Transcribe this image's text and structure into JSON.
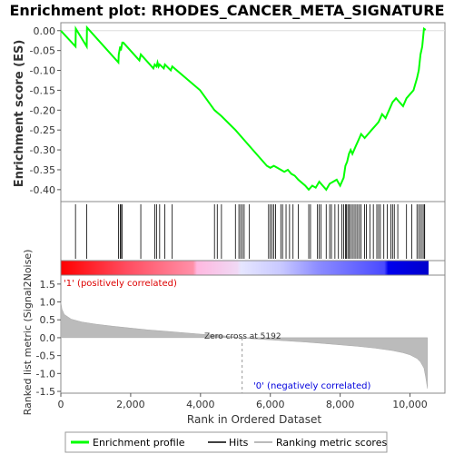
{
  "chart_data": {
    "type": "line",
    "title": "Enrichment plot: RHODES_CANCER_META_SIGNATURE",
    "panels": {
      "es": {
        "ylabel": "Enrichment score (ES)",
        "ylim": [
          -0.43,
          0.02
        ],
        "yticks": [
          0.0,
          -0.05,
          -0.1,
          -0.15,
          -0.2,
          -0.25,
          -0.3,
          -0.35,
          -0.4
        ],
        "ytick_labels": [
          "0.00",
          "-0.05",
          "-0.10",
          "-0.15",
          "-0.20",
          "-0.25",
          "-0.30",
          "-0.35",
          "-0.40"
        ],
        "series": [
          {
            "name": "Enrichment profile",
            "color": "#00ff00",
            "x": [
              0,
              420,
              430,
              740,
              750,
              1650,
              1660,
              1700,
              1720,
              1760,
              1790,
              2250,
              2290,
              2650,
              2690,
              2740,
              2770,
              2800,
              2830,
              2950,
              2980,
              3150,
              3190,
              3990,
              4400,
              4600,
              5000,
              5500,
              5900,
              6000,
              6100,
              6200,
              6300,
              6400,
              6500,
              6600,
              6700,
              6800,
              7000,
              7100,
              7200,
              7300,
              7400,
              7500,
              7600,
              7700,
              7800,
              7900,
              8000,
              8100,
              8150,
              8200,
              8250,
              8300,
              8350,
              8400,
              8450,
              8500,
              8550,
              8600,
              8700,
              8800,
              8900,
              9000,
              9100,
              9150,
              9200,
              9300,
              9400,
              9500,
              9600,
              9700,
              9800,
              9900,
              10000,
              10100,
              10200,
              10250,
              10300,
              10350,
              10400,
              10450
            ],
            "y": [
              0.0,
              -0.04,
              0.005,
              -0.04,
              0.008,
              -0.08,
              -0.06,
              -0.04,
              -0.05,
              -0.03,
              -0.03,
              -0.075,
              -0.06,
              -0.095,
              -0.085,
              -0.09,
              -0.08,
              -0.09,
              -0.085,
              -0.095,
              -0.085,
              -0.1,
              -0.09,
              -0.15,
              -0.2,
              -0.215,
              -0.25,
              -0.3,
              -0.34,
              -0.345,
              -0.34,
              -0.345,
              -0.35,
              -0.355,
              -0.35,
              -0.36,
              -0.365,
              -0.375,
              -0.39,
              -0.4,
              -0.39,
              -0.395,
              -0.38,
              -0.39,
              -0.4,
              -0.385,
              -0.38,
              -0.375,
              -0.39,
              -0.37,
              -0.34,
              -0.33,
              -0.31,
              -0.3,
              -0.31,
              -0.3,
              -0.29,
              -0.28,
              -0.27,
              -0.26,
              -0.27,
              -0.26,
              -0.25,
              -0.24,
              -0.23,
              -0.22,
              -0.21,
              -0.22,
              -0.2,
              -0.18,
              -0.17,
              -0.18,
              -0.19,
              -0.17,
              -0.16,
              -0.15,
              -0.12,
              -0.1,
              -0.06,
              -0.04,
              0.005,
              0.002
            ]
          }
        ]
      },
      "hits": {
        "positions": [
          420,
          740,
          1650,
          1700,
          1720,
          1760,
          2290,
          2690,
          2740,
          2830,
          2980,
          3190,
          4400,
          4480,
          4600,
          5000,
          5100,
          5150,
          5200,
          5250,
          5400,
          5950,
          6000,
          6050,
          6100,
          6150,
          6300,
          6350,
          6450,
          6550,
          6650,
          6800,
          7100,
          7150,
          7350,
          7400,
          7450,
          7600,
          7700,
          7750,
          7850,
          7950,
          8050,
          8100,
          8150,
          8180,
          8220,
          8260,
          8300,
          8350,
          8400,
          8450,
          8500,
          8550,
          8600,
          8700,
          8750,
          8850,
          8950,
          9050,
          9100,
          9150,
          9250,
          9350,
          9450,
          9500,
          9550,
          9650,
          9900,
          10050,
          10200,
          10250,
          10300,
          10350,
          10400,
          10420
        ]
      },
      "rank_bar": {
        "positive_label": "'1' (positively correlated)",
        "negative_label": "'0' (negatively correlated)",
        "positive_color": "#ff0000",
        "negative_color": "#0000ff"
      },
      "metric": {
        "ylabel": "Ranked list metric (Signal2Noise)",
        "ylim": [
          -1.55,
          1.75
        ],
        "yticks": [
          1.5,
          1.0,
          0.5,
          0.0,
          -0.5,
          -1.0,
          -1.5
        ],
        "ytick_labels": [
          "1.5",
          "1.0",
          "0.5",
          "0.0",
          "-0.5",
          "-1.0",
          "-1.5"
        ],
        "x": [
          0,
          30,
          100,
          300,
          600,
          1000,
          1500,
          2000,
          2500,
          3000,
          3500,
          4000,
          4500,
          5000,
          5192,
          5500,
          6000,
          6500,
          7000,
          7500,
          8000,
          8500,
          9000,
          9500,
          9800,
          10000,
          10200,
          10300,
          10400,
          10450,
          10500
        ],
        "values": [
          1.0,
          0.8,
          0.65,
          0.52,
          0.44,
          0.38,
          0.32,
          0.27,
          0.22,
          0.18,
          0.14,
          0.1,
          0.07,
          0.02,
          0.0,
          -0.03,
          -0.06,
          -0.09,
          -0.12,
          -0.16,
          -0.2,
          -0.24,
          -0.29,
          -0.36,
          -0.42,
          -0.48,
          -0.58,
          -0.68,
          -0.85,
          -1.1,
          -1.42
        ],
        "zero_cross_label": "Zero cross at 5192",
        "zero_cross": 5192
      }
    },
    "xlabel": "Rank in Ordered Dataset",
    "xlim": [
      0,
      11000
    ],
    "xticks": [
      0,
      2000,
      4000,
      6000,
      8000,
      10000
    ],
    "xtick_labels": [
      "0",
      "2,000",
      "4,000",
      "6,000",
      "8,000",
      "10,000"
    ],
    "legend": {
      "placement": "bottom",
      "items": [
        {
          "label": "Enrichment profile",
          "color": "#00ff00"
        },
        {
          "label": "Hits",
          "color": "#000000"
        },
        {
          "label": "Ranking metric scores",
          "color": "#bbbbbb"
        }
      ]
    }
  }
}
